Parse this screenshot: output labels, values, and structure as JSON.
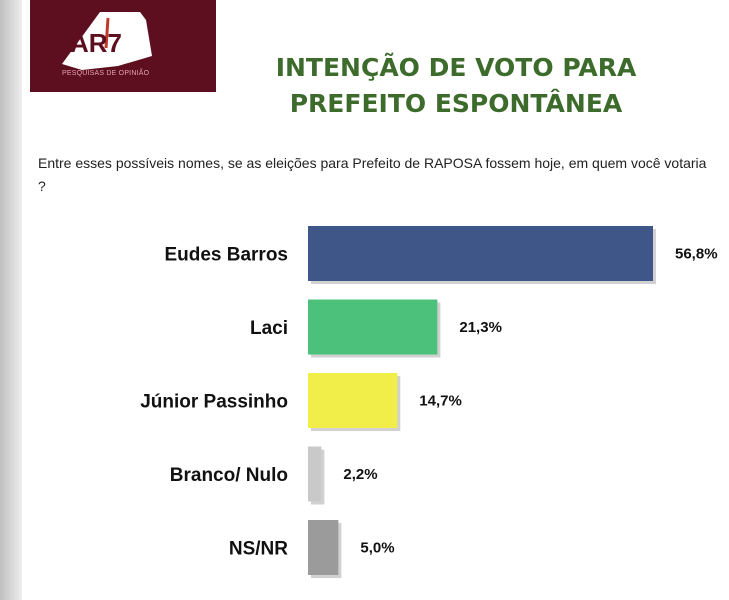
{
  "header": {
    "logo_text": "AR7",
    "logo_tagline": "PESQUISAS DE OPINIÃO",
    "title_line1": "INTENÇÃO DE VOTO PARA",
    "title_line2": "PREFEITO ESPONTÂNEA"
  },
  "question": "Entre esses possíveis nomes, se as eleições para Prefeito de RAPOSA fossem hoje, em quem você votaria ?",
  "chart_data": {
    "type": "bar",
    "orientation": "horizontal",
    "categories": [
      "Eudes Barros",
      "Laci",
      "Júnior Passinho",
      "Branco/ Nulo",
      "NS/NR"
    ],
    "values": [
      56.8,
      21.3,
      14.7,
      2.2,
      5.0
    ],
    "value_labels": [
      "56,8%",
      "21,3%",
      "14,7%",
      "2,2%",
      "5,0%"
    ],
    "colors": [
      "#3f5788",
      "#4cc17c",
      "#f1ee4a",
      "#c9c9c9",
      "#9b9b9b"
    ],
    "title": "",
    "xlabel": "",
    "ylabel": "",
    "xlim": [
      0,
      56.8
    ],
    "grid": false,
    "legend": "none"
  }
}
